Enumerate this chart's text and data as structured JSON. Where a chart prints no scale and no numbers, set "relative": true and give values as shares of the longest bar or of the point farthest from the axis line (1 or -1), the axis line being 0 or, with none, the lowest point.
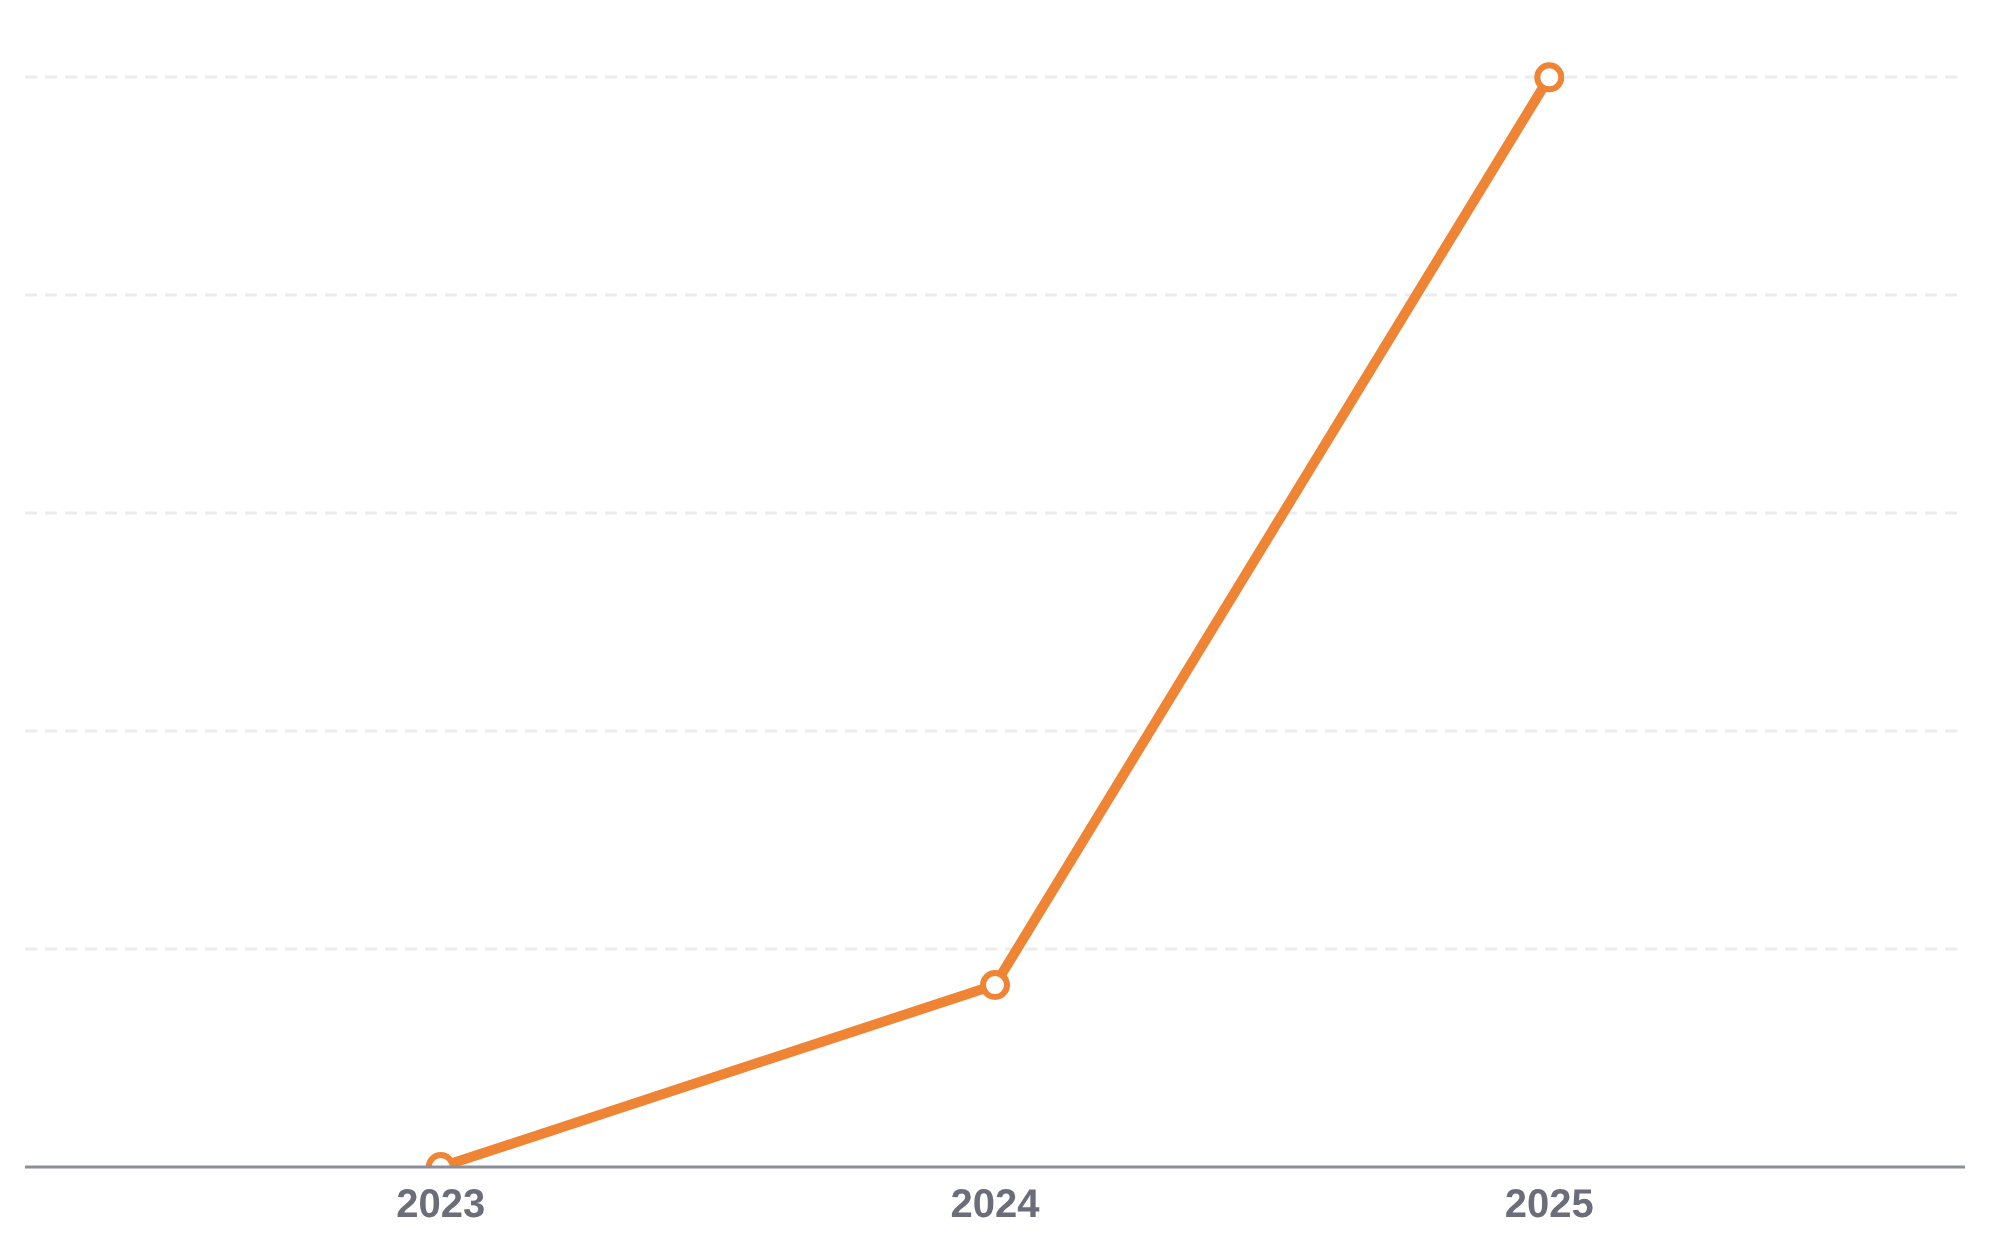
{
  "chart_data": {
    "type": "line",
    "relative": true,
    "categories": [
      "2023",
      "2024",
      "2025"
    ],
    "series": [
      {
        "color": "#ee8434",
        "values": [
          0,
          0.167,
          1
        ]
      }
    ],
    "marker": "circle",
    "line_style": "solid",
    "grid": "y",
    "tick_labels": "x"
  }
}
